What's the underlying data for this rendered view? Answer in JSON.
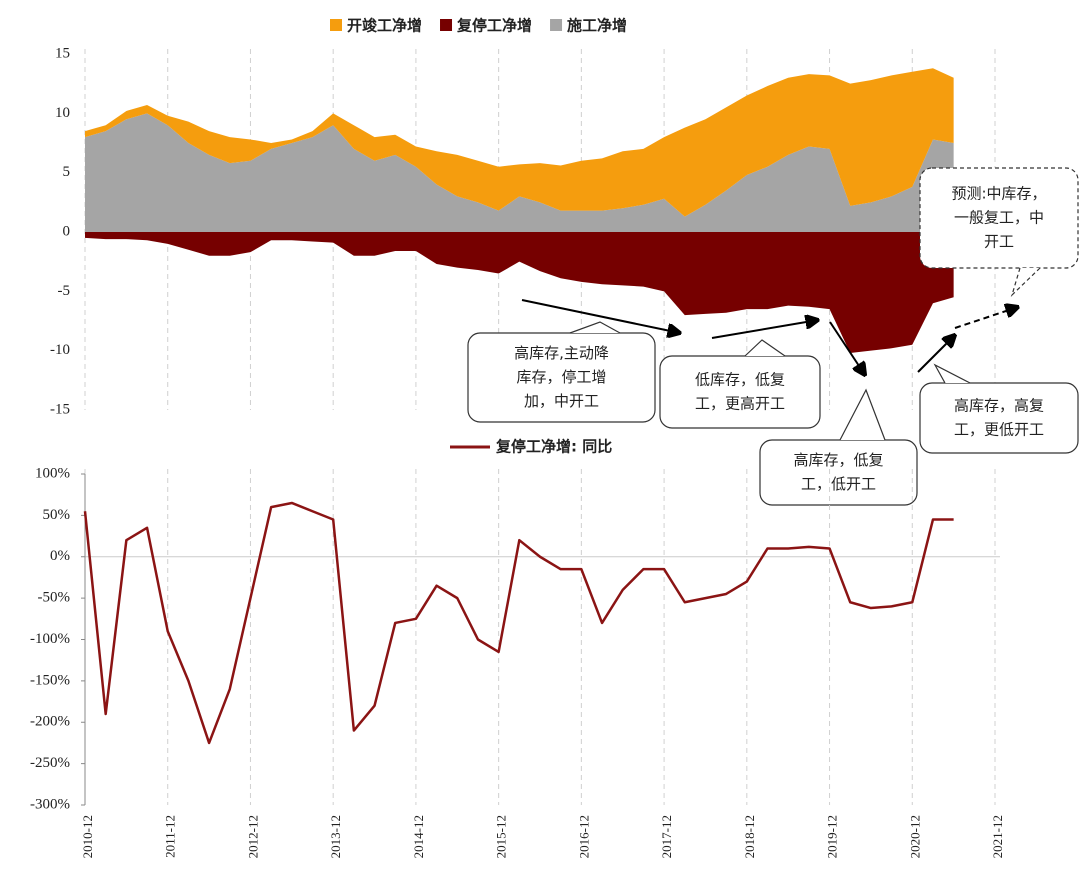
{
  "chart_data": [
    {
      "type": "stacked-area",
      "categories": [
        "2010-12",
        null,
        null,
        null,
        "2011-12",
        null,
        null,
        null,
        "2012-12",
        null,
        null,
        null,
        "2013-12",
        null,
        null,
        null,
        "2014-12",
        null,
        null,
        null,
        "2015-12",
        null,
        null,
        null,
        "2016-12",
        null,
        null,
        null,
        "2017-12",
        null,
        null,
        null,
        "2018-12",
        null,
        null,
        null,
        "2019-12",
        null,
        null,
        null,
        "2020-12",
        null,
        null,
        null,
        "2021-12"
      ],
      "series": [
        {
          "name": "开竣工净增",
          "color": "#f59d0e",
          "stack": "pos",
          "values": [
            0.5,
            0.5,
            0.7,
            0.7,
            0.8,
            1.8,
            2,
            2.2,
            1.8,
            0.5,
            0.3,
            0.5,
            1,
            2,
            2,
            1.7,
            1.7,
            2.8,
            3.5,
            3.5,
            3.7,
            2.7,
            3.3,
            3.8,
            4.2,
            4.4,
            4.8,
            4.7,
            5.2,
            7.5,
            7.2,
            7,
            6.7,
            6.8,
            6.5,
            6.1,
            6.2,
            10.3,
            10.3,
            10.2,
            9.7,
            6,
            5.5,
            null,
            null
          ]
        },
        {
          "name": "复停工净增",
          "color": "#760000",
          "stack": "neg",
          "values": [
            -0.5,
            -0.6,
            -0.6,
            -0.7,
            -1,
            -1.5,
            -2,
            -2,
            -1.7,
            -0.7,
            -0.7,
            -0.8,
            -0.9,
            -2,
            -2,
            -1.6,
            -1.6,
            -2.7,
            -3,
            -3.2,
            -3.5,
            -2.5,
            -3.3,
            -3.9,
            -4.2,
            -4.4,
            -4.5,
            -4.6,
            -5,
            -7,
            -6.9,
            -6.8,
            -6.5,
            -6.5,
            -6.2,
            -6.3,
            -6.5,
            -10.2,
            -10,
            -9.8,
            -9.5,
            -6,
            -5.5,
            null,
            null
          ]
        },
        {
          "name": "施工净增",
          "color": "#a5a5a5",
          "stack": "pos",
          "values": [
            8,
            8.5,
            9.5,
            10,
            9,
            7.5,
            6.5,
            5.8,
            6,
            7,
            7.5,
            8,
            9,
            7,
            6,
            6.5,
            5.5,
            4,
            3,
            2.5,
            1.8,
            3,
            2.5,
            1.8,
            1.8,
            1.8,
            2,
            2.3,
            2.8,
            1.3,
            2.3,
            3.5,
            4.8,
            5.5,
            6.5,
            7.2,
            7,
            2.2,
            2.5,
            3,
            3.8,
            7.8,
            7.5,
            null,
            null
          ]
        }
      ],
      "ylim": [
        -15,
        15
      ],
      "yticks": [
        15,
        10,
        5,
        0,
        -5,
        -10,
        -15
      ],
      "grid": true,
      "annotations": [
        {
          "lines": [
            "高库存,主动降",
            "库存，停工增",
            "加，中开工"
          ]
        },
        {
          "lines": [
            "低库存，低复",
            "工，更高开工"
          ]
        },
        {
          "lines": [
            "高库存，低复",
            "工，低开工"
          ]
        },
        {
          "lines": [
            "高库存，高复",
            "工，更低开工"
          ]
        },
        {
          "lines": [
            "预测:中库存，",
            "一般复工，中",
            "开工"
          ]
        }
      ]
    },
    {
      "type": "line",
      "categories": [
        "2010-12",
        null,
        null,
        null,
        "2011-12",
        null,
        null,
        null,
        "2012-12",
        null,
        null,
        null,
        "2013-12",
        null,
        null,
        null,
        "2014-12",
        null,
        null,
        null,
        "2015-12",
        null,
        null,
        null,
        "2016-12",
        null,
        null,
        null,
        "2017-12",
        null,
        null,
        null,
        "2018-12",
        null,
        null,
        null,
        "2019-12",
        null,
        null,
        null,
        "2020-12",
        null,
        null,
        null,
        "2021-12"
      ],
      "series": [
        {
          "name": "复停工净增: 同比",
          "color": "#8b1414",
          "values": [
            55,
            -190,
            20,
            35,
            -90,
            -150,
            -225,
            -160,
            -50,
            60,
            65,
            55,
            45,
            -210,
            -180,
            -80,
            -75,
            -35,
            -50,
            -100,
            -115,
            20,
            0,
            -15,
            -15,
            -80,
            -40,
            -15,
            -15,
            -55,
            -50,
            -45,
            -30,
            10,
            10,
            12,
            10,
            -55,
            -62,
            -60,
            -55,
            45,
            45,
            null,
            null
          ]
        }
      ],
      "ylim": [
        -300,
        100
      ],
      "yticks": [
        {
          "value": 100,
          "label": "100%"
        },
        {
          "value": 50,
          "label": "50%"
        },
        {
          "value": 0,
          "label": "0%"
        },
        {
          "value": -50,
          "label": "-50%"
        },
        {
          "value": -100,
          "label": "-100%"
        },
        {
          "value": -150,
          "label": "-150%"
        },
        {
          "value": -200,
          "label": "-200%"
        },
        {
          "value": -250,
          "label": "-250%"
        },
        {
          "value": -300,
          "label": "-300%"
        }
      ],
      "grid": true
    }
  ]
}
